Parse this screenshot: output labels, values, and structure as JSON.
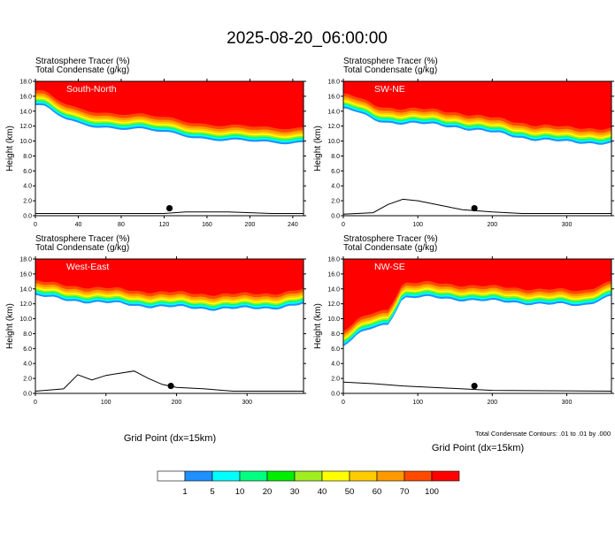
{
  "title": "2025-08-20_06:00:00",
  "panel_subtitle_line1": "Stratosphere Tracer    (%)",
  "panel_subtitle_line2": "Total Condensate    (g/kg)",
  "ylabel": "Height (km)",
  "xlabel": "Grid Point (dx=15km)",
  "contour_note": "Total Condensate Contours: .01 to .01 by .000",
  "colorbar": {
    "labels": [
      "1",
      "5",
      "10",
      "20",
      "30",
      "40",
      "50",
      "60",
      "70",
      "100"
    ],
    "colors": [
      "#ffffff",
      "#1e90ff",
      "#00ffff",
      "#00ff80",
      "#00ee00",
      "#a0ee20",
      "#ffff00",
      "#ffcc00",
      "#ff9900",
      "#ff4a00",
      "#ff0000"
    ]
  },
  "chart_data": [
    {
      "type": "heatmap",
      "panel_label": "South-North",
      "ylim": [
        0,
        18
      ],
      "yticks": [
        "0.0",
        "2.0",
        "4.0",
        "6.0",
        "8.0",
        "10.0",
        "12.0",
        "14.0",
        "16.0",
        "18.0"
      ],
      "xlim": [
        0,
        250
      ],
      "xticks": [
        "0",
        "40",
        "80",
        "120",
        "160",
        "200",
        "240"
      ],
      "tropopause_km": {
        "x": [
          0,
          10,
          20,
          30,
          40,
          60,
          80,
          100,
          120,
          140,
          160,
          180,
          200,
          220,
          240,
          250
        ],
        "y": [
          15.5,
          15.2,
          14.2,
          13.4,
          13.0,
          12.6,
          12.4,
          12.2,
          11.8,
          11.4,
          11.0,
          10.8,
          10.6,
          10.4,
          10.5,
          10.6
        ]
      },
      "terrain_km": {
        "x": [
          0,
          120,
          140,
          180,
          200,
          220,
          250
        ],
        "y": [
          0.3,
          0.3,
          0.5,
          0.5,
          0.4,
          0.3,
          0.3
        ]
      },
      "marker": {
        "x": 125,
        "y": 1.0
      }
    },
    {
      "type": "heatmap",
      "panel_label": "SW-NE",
      "ylim": [
        0,
        18
      ],
      "yticks": [
        "0.0",
        "2.0",
        "4.0",
        "6.0",
        "8.0",
        "10.0",
        "12.0",
        "14.0",
        "16.0",
        "18.0"
      ],
      "xlim": [
        0,
        360
      ],
      "xticks": [
        "0",
        "100",
        "200",
        "300"
      ],
      "tropopause_km": {
        "x": [
          0,
          20,
          40,
          60,
          100,
          150,
          200,
          250,
          300,
          360
        ],
        "y": [
          15.0,
          14.5,
          13.5,
          13.2,
          13.0,
          12.6,
          11.8,
          11.0,
          10.5,
          10.4
        ]
      },
      "terrain_km": {
        "x": [
          0,
          40,
          60,
          80,
          100,
          140,
          160,
          200,
          240,
          300,
          360
        ],
        "y": [
          0.2,
          0.4,
          1.5,
          2.2,
          2.0,
          1.2,
          0.8,
          0.5,
          0.3,
          0.3,
          0.3
        ]
      },
      "marker": {
        "x": 176,
        "y": 1.0
      }
    },
    {
      "type": "heatmap",
      "panel_label": "West-East",
      "ylim": [
        0,
        18
      ],
      "yticks": [
        "0.0",
        "2.0",
        "4.0",
        "6.0",
        "8.0",
        "10.0",
        "12.0",
        "14.0",
        "16.0",
        "18.0"
      ],
      "xlim": [
        0,
        380
      ],
      "xticks": [
        "0",
        "100",
        "200",
        "300"
      ],
      "tropopause_km": {
        "x": [
          0,
          40,
          100,
          150,
          200,
          250,
          300,
          350,
          380
        ],
        "y": [
          13.8,
          13.2,
          12.8,
          12.4,
          12.2,
          12.0,
          12.0,
          12.2,
          12.6
        ]
      },
      "terrain_km": {
        "x": [
          0,
          40,
          60,
          80,
          100,
          140,
          160,
          180,
          200,
          240,
          280,
          380
        ],
        "y": [
          0.3,
          0.6,
          2.5,
          1.8,
          2.4,
          3.0,
          2.0,
          1.2,
          0.8,
          0.6,
          0.3,
          0.3
        ]
      },
      "marker": {
        "x": 192,
        "y": 1.0
      }
    },
    {
      "type": "heatmap",
      "panel_label": "NW-SE",
      "ylim": [
        0,
        18
      ],
      "yticks": [
        "0.0",
        "2.0",
        "4.0",
        "6.0",
        "8.0",
        "10.0",
        "12.0",
        "14.0",
        "16.0",
        "18.0"
      ],
      "xlim": [
        0,
        360
      ],
      "xticks": [
        "0",
        "100",
        "200",
        "300"
      ],
      "tropopause_km": {
        "x": [
          0,
          20,
          40,
          60,
          80,
          120,
          200,
          280,
          320,
          360
        ],
        "y": [
          7.0,
          8.5,
          9.5,
          10.0,
          13.5,
          13.5,
          13.0,
          12.6,
          12.4,
          13.8
        ]
      },
      "terrain_km": {
        "x": [
          0,
          40,
          80,
          120,
          160,
          200,
          360
        ],
        "y": [
          1.5,
          1.3,
          1.0,
          0.8,
          0.6,
          0.4,
          0.3
        ]
      },
      "marker": {
        "x": 176,
        "y": 1.0
      }
    }
  ]
}
